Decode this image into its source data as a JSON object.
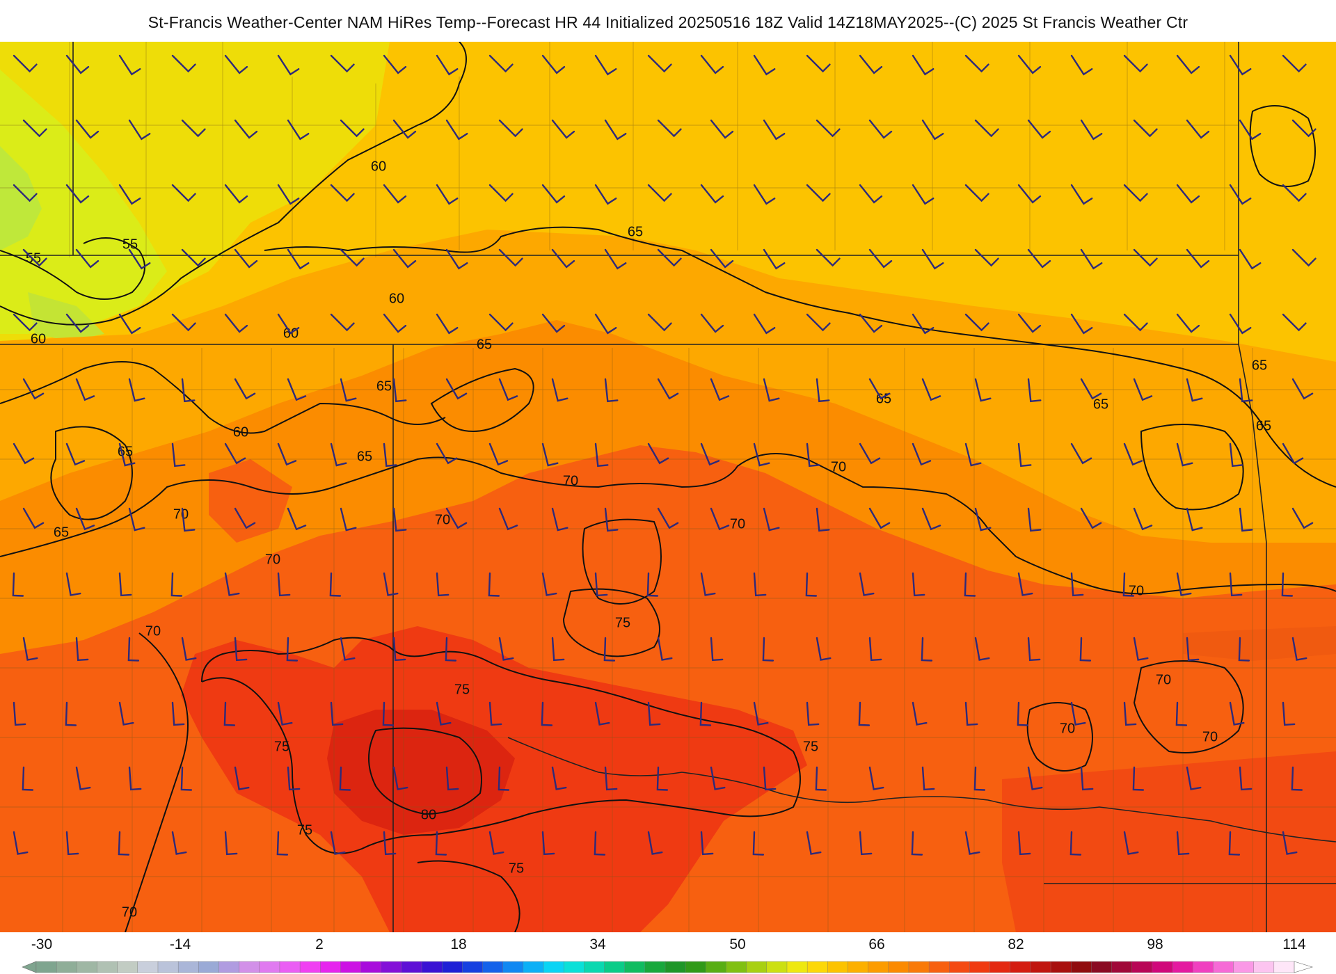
{
  "title": "St-Francis Weather-Center NAM HiRes Temp--Forecast HR 44 Initialized 20250516 18Z Valid 14Z18MAY2025--(C) 2025 St Francis Weather Ctr",
  "colorbar": {
    "ticks": [
      "-30",
      "-14",
      "2",
      "18",
      "34",
      "50",
      "66",
      "82",
      "98",
      "114"
    ]
  },
  "contour_labels": [
    {
      "text": "60"
    },
    {
      "text": "65"
    },
    {
      "text": "55"
    },
    {
      "text": "55"
    },
    {
      "text": "60"
    },
    {
      "text": "60"
    },
    {
      "text": "60"
    },
    {
      "text": "65"
    },
    {
      "text": "65"
    },
    {
      "text": "60"
    },
    {
      "text": "65"
    },
    {
      "text": "65"
    },
    {
      "text": "70"
    },
    {
      "text": "65"
    },
    {
      "text": "70"
    },
    {
      "text": "70"
    },
    {
      "text": "70"
    },
    {
      "text": "65"
    },
    {
      "text": "65"
    },
    {
      "text": "65"
    },
    {
      "text": "70"
    },
    {
      "text": "70"
    },
    {
      "text": "75"
    },
    {
      "text": "70"
    },
    {
      "text": "75"
    },
    {
      "text": "70"
    },
    {
      "text": "70"
    },
    {
      "text": "70"
    },
    {
      "text": "75"
    },
    {
      "text": "80"
    },
    {
      "text": "75"
    },
    {
      "text": "75"
    },
    {
      "text": "75"
    },
    {
      "text": "70"
    },
    {
      "text": "65"
    },
    {
      "text": "70"
    }
  ],
  "colors": {
    "coolest_field": "#d6f020",
    "mid_field": "#fcc300",
    "warm_field": "#fb8a00",
    "hot_field": "#f03a10",
    "hottest_field": "#c0150f",
    "contour_line": "#111111",
    "wind_barb": "#2e2a7a",
    "border_line": "#333333"
  }
}
